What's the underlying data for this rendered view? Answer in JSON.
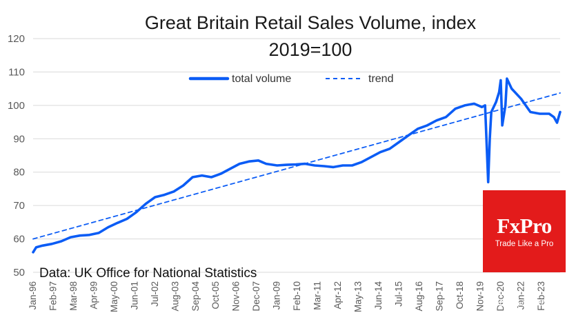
{
  "chart_data": {
    "type": "line",
    "title_line1": "Great Britain Retail Sales Volume, index",
    "title_line2": "2019=100",
    "ylim": [
      50,
      120
    ],
    "yticks": [
      50,
      60,
      70,
      80,
      90,
      100,
      110,
      120
    ],
    "x_tick_labels": [
      "Jan-96",
      "Feb-97",
      "Mar-98",
      "Apr-99",
      "May-00",
      "Jun-01",
      "Jul-02",
      "Aug-03",
      "Sep-04",
      "Oct-05",
      "Nov-06",
      "Dec-07",
      "Jan-09",
      "Feb-10",
      "Mar-11",
      "Apr-12",
      "May-13",
      "Jun-14",
      "Jul-15",
      "Aug-16",
      "Sep-17",
      "Oct-18",
      "Nov-19",
      "Dec-20",
      "Jan-22",
      "Feb-23"
    ],
    "x_range": [
      "Jan-96",
      "Feb-24"
    ],
    "grid": true,
    "legend_position": "top-center",
    "series": [
      {
        "name": "total volume",
        "style": "solid",
        "color": "#0b5cf5",
        "points": [
          [
            "Jan-96",
            56
          ],
          [
            "Mar-96",
            57.5
          ],
          [
            "Jul-96",
            58
          ],
          [
            "Jan-97",
            58.5
          ],
          [
            "Jul-97",
            59.3
          ],
          [
            "Jan-98",
            60.5
          ],
          [
            "Jul-98",
            61
          ],
          [
            "Jan-99",
            61.2
          ],
          [
            "Jul-99",
            61.8
          ],
          [
            "Jan-00",
            63.5
          ],
          [
            "Jul-00",
            64.8
          ],
          [
            "Jan-01",
            66
          ],
          [
            "Jul-01",
            68
          ],
          [
            "Jan-02",
            70.5
          ],
          [
            "Jul-02",
            72.5
          ],
          [
            "Jan-03",
            73.2
          ],
          [
            "Jul-03",
            74.2
          ],
          [
            "Jan-04",
            76
          ],
          [
            "Jul-04",
            78.5
          ],
          [
            "Jan-05",
            79
          ],
          [
            "Jul-05",
            78.5
          ],
          [
            "Jan-06",
            79.5
          ],
          [
            "Jul-06",
            81
          ],
          [
            "Jan-07",
            82.5
          ],
          [
            "Jul-07",
            83.2
          ],
          [
            "Jan-08",
            83.5
          ],
          [
            "Jun-08",
            82.5
          ],
          [
            "Jan-09",
            82
          ],
          [
            "Jul-09",
            82.2
          ],
          [
            "Jan-10",
            82.3
          ],
          [
            "Jul-10",
            82.5
          ],
          [
            "Jan-11",
            82
          ],
          [
            "Jul-11",
            81.8
          ],
          [
            "Jan-12",
            81.5
          ],
          [
            "Jul-12",
            82
          ],
          [
            "Jan-13",
            82
          ],
          [
            "Jul-13",
            83
          ],
          [
            "Jan-14",
            84.5
          ],
          [
            "Jul-14",
            86
          ],
          [
            "Jan-15",
            87
          ],
          [
            "Jul-15",
            89
          ],
          [
            "Jan-16",
            91
          ],
          [
            "Jul-16",
            93
          ],
          [
            "Jan-17",
            94
          ],
          [
            "Jul-17",
            95.5
          ],
          [
            "Jan-18",
            96.5
          ],
          [
            "Jul-18",
            99
          ],
          [
            "Jan-19",
            100
          ],
          [
            "Jul-19",
            100.5
          ],
          [
            "Dec-19",
            99.5
          ],
          [
            "Feb-20",
            100
          ],
          [
            "Apr-20",
            77
          ],
          [
            "May-20",
            90
          ],
          [
            "Jun-20",
            98
          ],
          [
            "Sep-20",
            101
          ],
          [
            "Nov-20",
            104
          ],
          [
            "Dec-20",
            107.5
          ],
          [
            "Jan-21",
            94
          ],
          [
            "Mar-21",
            100
          ],
          [
            "Apr-21",
            108
          ],
          [
            "Jul-21",
            105
          ],
          [
            "Jan-22",
            102
          ],
          [
            "Jul-22",
            98
          ],
          [
            "Jan-23",
            97.5
          ],
          [
            "Jul-23",
            97.5
          ],
          [
            "Oct-23",
            96.5
          ],
          [
            "Dec-23",
            94.8
          ],
          [
            "Feb-24",
            98
          ]
        ]
      },
      {
        "name": "trend",
        "style": "dashed",
        "color": "#0b5cf5",
        "points": [
          [
            "Jan-96",
            60
          ],
          [
            "Feb-24",
            103.7
          ]
        ]
      }
    ],
    "annotation": "Data: UK Office for National Statistics"
  },
  "logo": {
    "brand": "FxPro",
    "slogan": "Trade Like a Pro"
  },
  "watermark": "知乎 @FxPro浦汇"
}
